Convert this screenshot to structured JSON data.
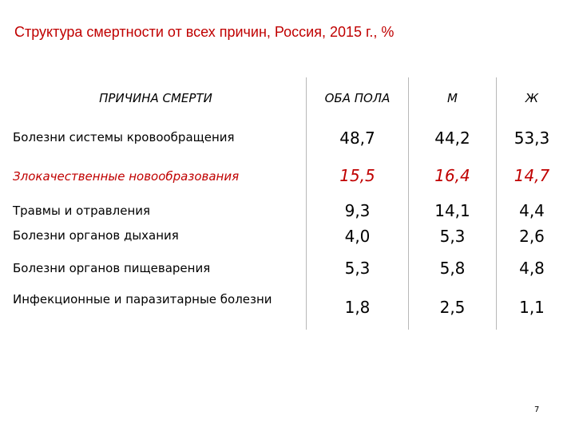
{
  "title": "Структура смертности от всех причин, Россия, 2015 г., %",
  "table": {
    "headers": [
      "ПРИЧИНА СМЕРТИ",
      "ОБА ПОЛА",
      "М",
      "Ж"
    ],
    "rows": [
      {
        "cause": "Болезни системы кровообращения",
        "both": "48,7",
        "m": "44,2",
        "f": "53,3",
        "highlight": false
      },
      {
        "cause": "Злокачественные новообразования",
        "both": "15,5",
        "m": "16,4",
        "f": "14,7",
        "highlight": true
      },
      {
        "cause": "Травмы и отравления",
        "both": "9,3",
        "m": "14,1",
        "f": "4,4",
        "highlight": false
      },
      {
        "cause": "Болезни органов дыхания",
        "both": "4,0",
        "m": "5,3",
        "f": "2,6",
        "highlight": false
      },
      {
        "cause": "Болезни органов пищеварения",
        "both": "5,3",
        "m": "5,8",
        "f": "4,8",
        "highlight": false
      },
      {
        "cause": "Инфекционные и паразитарные болезни",
        "both": "1,8",
        "m": "2,5",
        "f": "1,1",
        "highlight": false
      }
    ]
  },
  "highlight_color": "#c00000",
  "slide_number": "7"
}
